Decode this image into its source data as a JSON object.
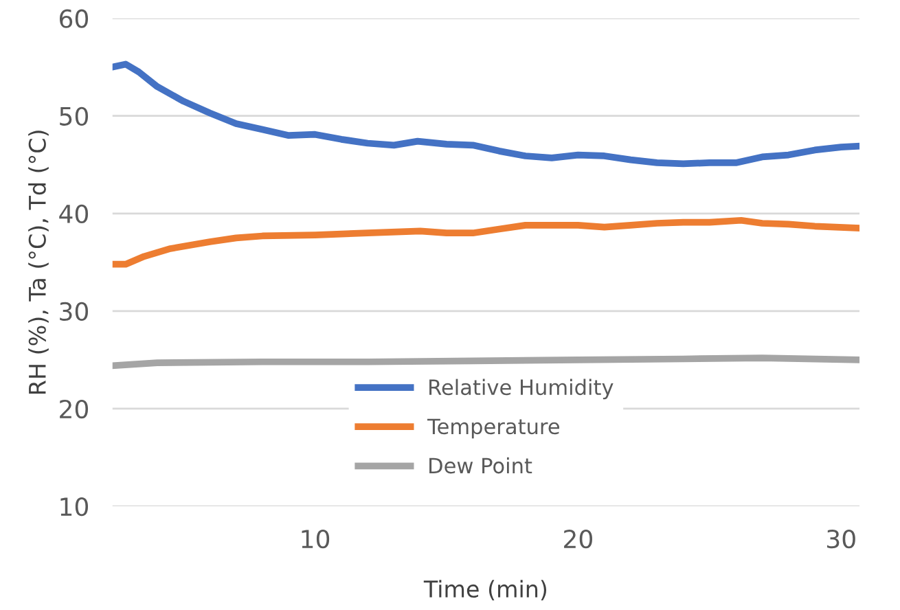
{
  "chart_data": {
    "type": "line",
    "xlabel": "Time (min)",
    "ylabel": "RH (%), Ta (°C), Td (°C)",
    "xlim": [
      2.3,
      30.7
    ],
    "xticks": [
      10,
      20,
      30
    ],
    "ylim": [
      10,
      60
    ],
    "yticks": [
      10,
      20,
      30,
      40,
      50,
      60
    ],
    "grid": "y",
    "legend": "bottom",
    "line_style": "solid",
    "marker": "none",
    "series": [
      {
        "name": "Relative Humidity",
        "color": "#4472c4",
        "x": [
          2.3,
          2.8,
          3.3,
          4,
          5,
          6,
          7,
          8,
          9,
          10,
          11,
          12,
          13,
          13.9,
          15,
          16,
          17,
          18,
          19,
          20,
          21,
          22,
          23,
          24,
          25,
          26,
          27,
          28,
          29,
          30,
          30.7
        ],
        "values": [
          55.0,
          55.3,
          54.5,
          53,
          51.5,
          50.3,
          49.2,
          48.6,
          48.0,
          48.1,
          47.6,
          47.2,
          47.0,
          47.4,
          47.1,
          47.0,
          46.4,
          45.9,
          45.7,
          46.0,
          45.9,
          45.5,
          45.2,
          45.1,
          45.2,
          45.2,
          45.8,
          46.0,
          46.5,
          46.8,
          46.9
        ]
      },
      {
        "name": "Temperature",
        "color": "#ed7d31",
        "x": [
          2.3,
          2.8,
          3.5,
          4.5,
          6,
          7,
          8,
          10,
          12,
          14,
          15,
          16,
          17,
          18,
          19,
          20,
          21,
          22,
          23,
          24,
          25,
          26.2,
          27,
          28,
          29,
          30.7
        ],
        "values": [
          34.8,
          34.8,
          35.6,
          36.4,
          37.1,
          37.5,
          37.7,
          37.8,
          38.0,
          38.2,
          38.0,
          38.0,
          38.4,
          38.8,
          38.8,
          38.8,
          38.6,
          38.8,
          39.0,
          39.1,
          39.1,
          39.3,
          39.0,
          38.9,
          38.7,
          38.5
        ]
      },
      {
        "name": "Dew Point",
        "color": "#a5a5a5",
        "x": [
          2.3,
          4,
          8,
          12,
          16,
          20,
          24,
          27,
          30.7
        ],
        "values": [
          24.4,
          24.7,
          24.8,
          24.8,
          24.9,
          25.0,
          25.1,
          25.2,
          25.0
        ]
      }
    ]
  }
}
